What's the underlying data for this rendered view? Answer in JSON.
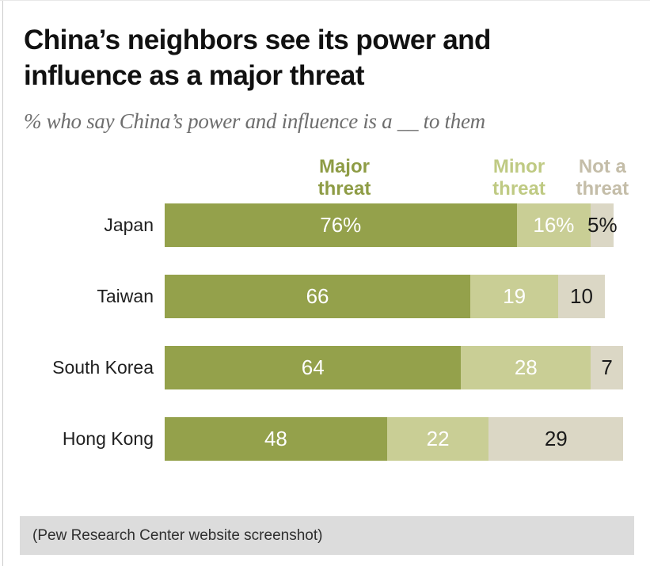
{
  "title": "China’s neighbors see its power and influence as a major threat",
  "subtitle": "% who say China’s power and influence is a __ to them",
  "footer": "(Pew Research Center website screenshot)",
  "colors": {
    "major_bar": "#94A14B",
    "minor_bar": "#C9CE95",
    "not_bar": "#DBD7C5",
    "major_header_text": "#8E9C45",
    "minor_header_text": "#BFCA83",
    "not_header_text": "#C4BDA8",
    "value_on_green": "#FFFFFF",
    "value_on_tan": "#1A1A1A",
    "footer_background": "#DCDCDC"
  },
  "legend": {
    "headers": [
      {
        "label": "Major threat",
        "color": "#8E9C45"
      },
      {
        "label": "Minor threat",
        "color": "#BFCA83"
      },
      {
        "label": "Not a threat",
        "color": "#C4BDA8"
      }
    ]
  },
  "chart_data": {
    "type": "bar",
    "stacked": true,
    "orientation": "horizontal",
    "title": "China’s neighbors see its power and influence as a major threat",
    "xlabel": "",
    "ylabel": "",
    "xlim": [
      0,
      100
    ],
    "grid": false,
    "categories": [
      "Japan",
      "Taiwan",
      "South Korea",
      "Hong Kong"
    ],
    "series": [
      {
        "name": "Major threat",
        "values": [
          76,
          66,
          64,
          48
        ],
        "color": "#94A14B",
        "label_color": "#FFFFFF"
      },
      {
        "name": "Minor threat",
        "values": [
          16,
          19,
          28,
          22
        ],
        "color": "#C9CE95",
        "label_color": "#FFFFFF"
      },
      {
        "name": "Not a threat",
        "values": [
          5,
          10,
          7,
          29
        ],
        "color": "#DBD7C5",
        "label_color": "#1A1A1A"
      }
    ],
    "value_labels": [
      [
        "76%",
        "16%",
        "5%"
      ],
      [
        "66",
        "19",
        "10"
      ],
      [
        "64",
        "28",
        "7"
      ],
      [
        "48",
        "22",
        "29"
      ]
    ]
  }
}
